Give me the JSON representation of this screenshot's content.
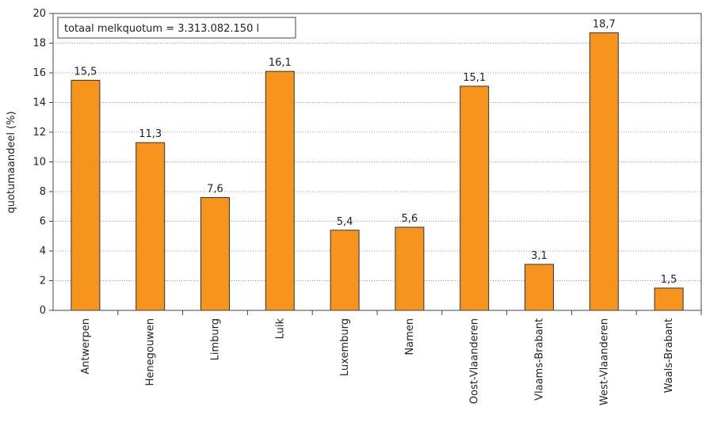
{
  "chart_data": {
    "type": "bar",
    "y_label": "quotumaandeel (%)",
    "annotation": "totaal melkquotum = 3.313.082.150 l",
    "categories": [
      "Antwerpen",
      "Henegouwen",
      "Limburg",
      "Luik",
      "Luxemburg",
      "Namen",
      "Oost-Vlaanderen",
      "Vlaams-Brabant",
      "West-Vlaanderen",
      "Waals-Brabant"
    ],
    "values": [
      15.5,
      11.3,
      7.6,
      16.1,
      5.4,
      5.6,
      15.1,
      3.1,
      18.7,
      1.5
    ],
    "value_labels": [
      "15,5",
      "11,3",
      "7,6",
      "16,1",
      "5,4",
      "5,6",
      "15,1",
      "3,1",
      "18,7",
      "1,5"
    ],
    "color": "#f7941d",
    "ylim": [
      0,
      20
    ],
    "yticks": [
      0,
      2,
      4,
      6,
      8,
      10,
      12,
      14,
      16,
      18,
      20
    ],
    "grid": true
  }
}
